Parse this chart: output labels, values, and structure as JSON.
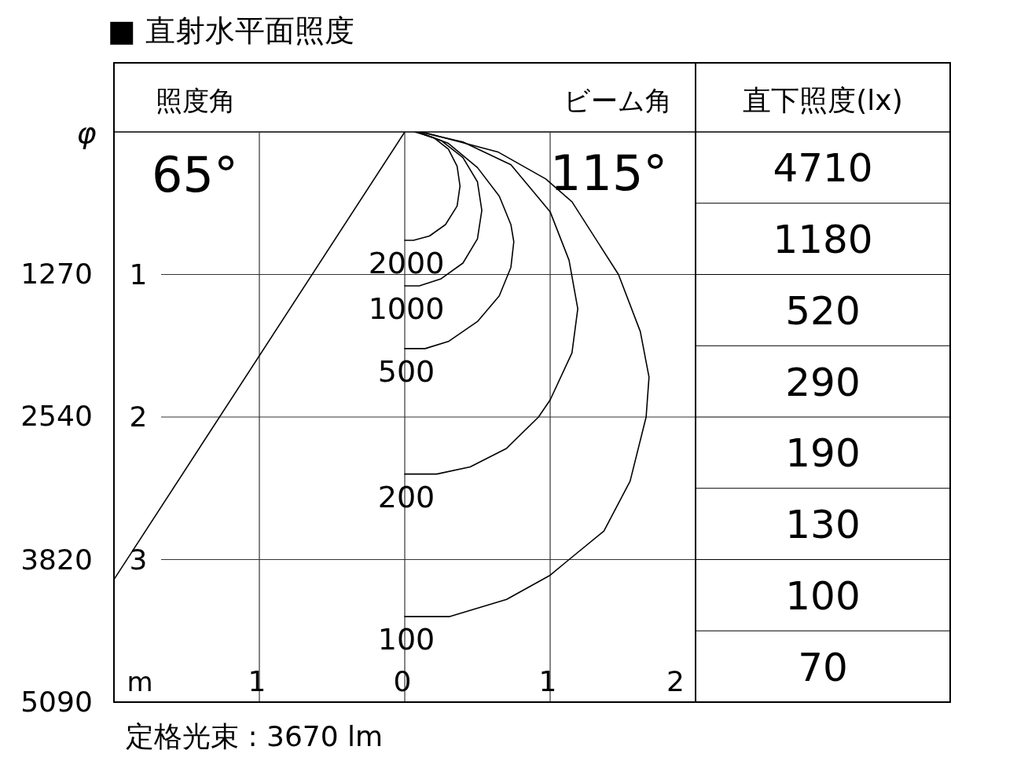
{
  "chart_data": [
    {
      "type": "line",
      "title": "■ 直射水平面照度",
      "xlabel": "m",
      "y2label": "φ",
      "xlim": [
        -2,
        2
      ],
      "xticks": [
        {
          "value": -1,
          "label": "1"
        },
        0,
        1,
        2
      ],
      "ylim": [
        4,
        0
      ],
      "yticks": [
        1,
        2,
        3
      ],
      "y2lim": [
        5090,
        0
      ],
      "y2ticks": [
        1270,
        2540,
        3820,
        5090
      ],
      "grid": true,
      "annotations": [
        "照度角",
        "65°",
        "ビーム角",
        "115°",
        "定格光束 : 3670 lm"
      ],
      "series": [
        {
          "name": "2000",
          "color": "#000000",
          "x": [
            0.07,
            0.2,
            0.3,
            0.36,
            0.38,
            0.36,
            0.28,
            0.17,
            0.06,
            0
          ],
          "values": [
            0,
            0.04,
            0.12,
            0.24,
            0.38,
            0.52,
            0.65,
            0.73,
            0.76,
            0.76
          ]
        },
        {
          "name": "1000",
          "color": "#000000",
          "x": [
            0.08,
            0.25,
            0.4,
            0.5,
            0.53,
            0.5,
            0.4,
            0.25,
            0.1,
            0
          ],
          "values": [
            0,
            0.06,
            0.18,
            0.35,
            0.55,
            0.75,
            0.92,
            1.03,
            1.08,
            1.08
          ]
        },
        {
          "name": "500",
          "color": "#000000",
          "x": [
            0.09,
            0.3,
            0.5,
            0.65,
            0.73,
            0.75,
            0.73,
            0.65,
            0.5,
            0.3,
            0.14,
            0
          ],
          "values": [
            0,
            0.08,
            0.25,
            0.45,
            0.65,
            0.77,
            0.95,
            1.15,
            1.33,
            1.47,
            1.52,
            1.52
          ]
        },
        {
          "name": "200",
          "color": "#000000",
          "x": [
            0.1,
            0.4,
            0.73,
            1.0,
            1.13,
            1.19,
            1.15,
            1.0,
            0.92,
            0.7,
            0.45,
            0.22,
            0
          ],
          "values": [
            0,
            0.07,
            0.23,
            0.56,
            0.9,
            1.24,
            1.55,
            1.88,
            2.0,
            2.22,
            2.35,
            2.4,
            2.4
          ]
        },
        {
          "name": "100",
          "color": "#000000",
          "x": [
            0.12,
            0.64,
            0.97,
            1.15,
            1.47,
            1.62,
            1.68,
            1.66,
            1.55,
            1.37,
            1.13,
            1.0,
            0.7,
            0.31,
            0
          ],
          "values": [
            0,
            0.14,
            0.33,
            0.49,
            1.0,
            1.4,
            1.72,
            2.0,
            2.45,
            2.8,
            3.0,
            3.11,
            3.28,
            3.4,
            3.4
          ]
        },
        {
          "color": "#000000",
          "x": [
            0,
            -2
          ],
          "values": [
            0,
            3.14
          ]
        }
      ]
    },
    {
      "type": "other",
      "title": "直下照度(lx)",
      "data_labels": true,
      "values": [
        4710,
        1180,
        520,
        290,
        190,
        130,
        100,
        70
      ]
    }
  ]
}
